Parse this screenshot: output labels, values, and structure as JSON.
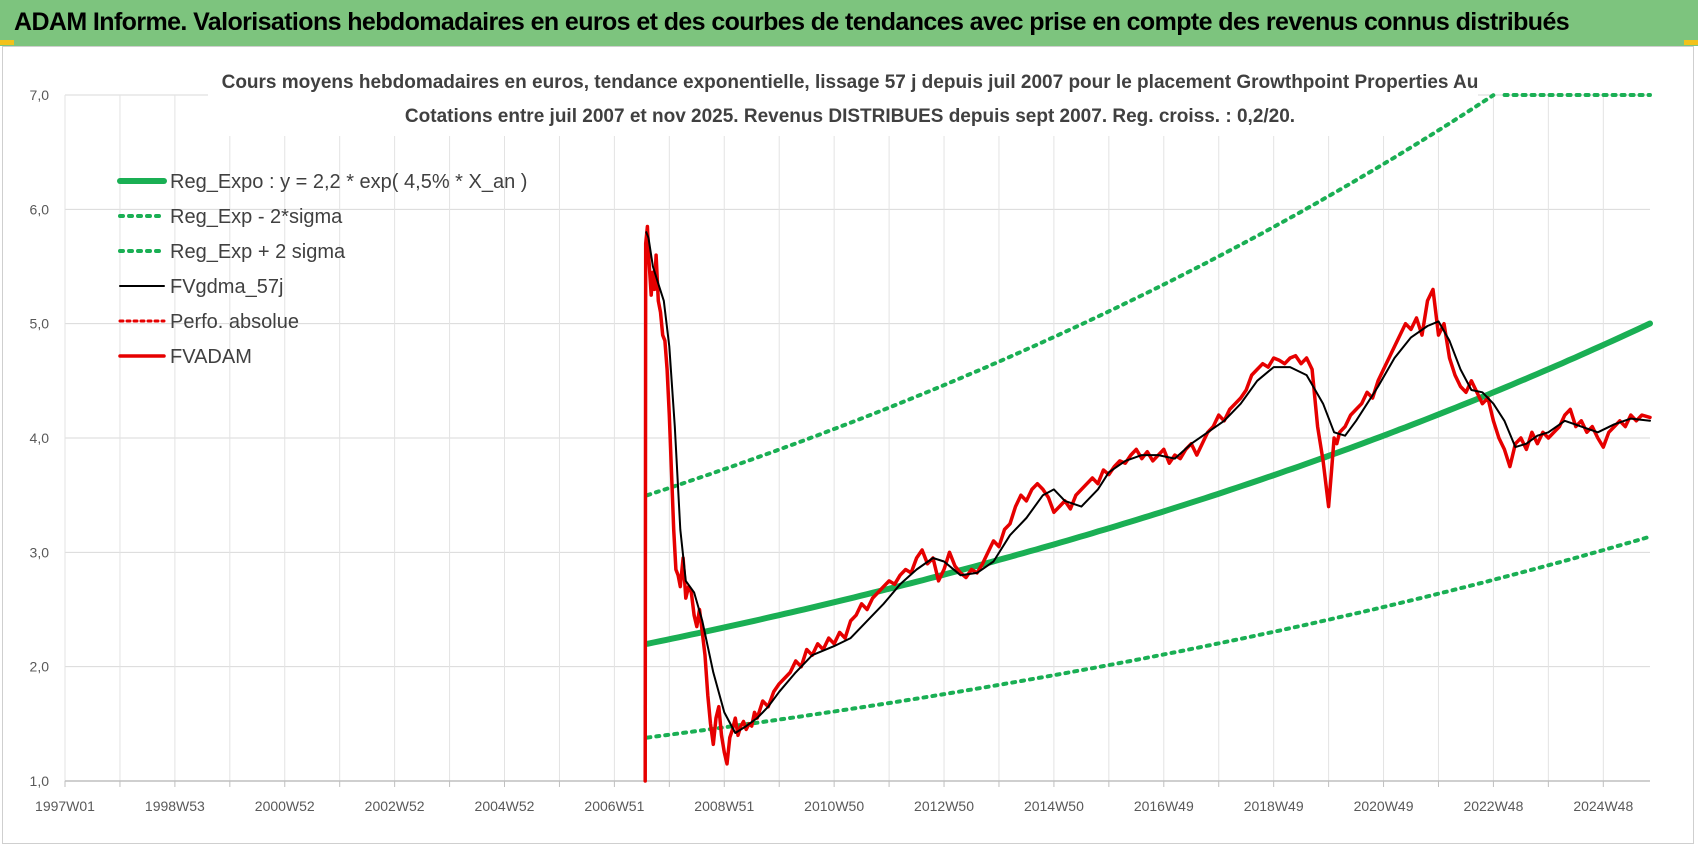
{
  "header": {
    "title": "ADAM Informe. Valorisations hebdomadaires en euros et des courbes de tendances avec prise en compte des revenus connus distribués",
    "background": "#7dc47e"
  },
  "chart_data": {
    "type": "line",
    "title": "Cours moyens hebdomadaires en euros, tendance exponentielle, lissage 57 j depuis juil 2007 pour le placement Growthpoint Properties Au",
    "subtitle": "Cotations entre juil 2007 et nov 2025. Revenus DISTRIBUES depuis sept 2007. Reg. croiss. : 0,2/20.",
    "xlabel": "",
    "ylabel": "",
    "ylim": [
      1.0,
      7.0
    ],
    "xlim": [
      1997.0,
      2025.85
    ],
    "grid": true,
    "legend_position": "top-left",
    "y_ticks": [
      "1,0",
      "2,0",
      "3,0",
      "4,0",
      "5,0",
      "6,0",
      "7,0"
    ],
    "x_ticks": [
      {
        "label": "1997W01",
        "x": 1997.0
      },
      {
        "label": "1998W53",
        "x": 1999.0
      },
      {
        "label": "2000W52",
        "x": 2001.0
      },
      {
        "label": "2002W52",
        "x": 2003.0
      },
      {
        "label": "2004W52",
        "x": 2005.0
      },
      {
        "label": "2006W51",
        "x": 2007.0
      },
      {
        "label": "2008W51",
        "x": 2009.0
      },
      {
        "label": "2010W50",
        "x": 2011.0
      },
      {
        "label": "2012W50",
        "x": 2013.0
      },
      {
        "label": "2014W50",
        "x": 2015.0
      },
      {
        "label": "2016W49",
        "x": 2017.0
      },
      {
        "label": "2018W49",
        "x": 2019.0
      },
      {
        "label": "2020W49",
        "x": 2021.0
      },
      {
        "label": "2022W48",
        "x": 2023.0
      },
      {
        "label": "2024W48",
        "x": 2025.0
      }
    ],
    "series": [
      {
        "name": "Reg_Expo : y = 2,2 * exp( 4,5% *  X_an )",
        "color": "#1aaf54",
        "style": "solid",
        "width": 6,
        "formula": {
          "a": 2.2,
          "rate": 0.045,
          "start": 2007.6,
          "end": 2025.85
        }
      },
      {
        "name": "Reg_Exp - 2*sigma",
        "color": "#1aaf54",
        "style": "dotted",
        "width": 4,
        "formula": {
          "a": 1.38,
          "rate": 0.045,
          "start": 2007.6,
          "end": 2025.85
        }
      },
      {
        "name": "Reg_Exp + 2 sigma",
        "color": "#1aaf54",
        "style": "dotted",
        "width": 4,
        "formula": {
          "a": 3.5,
          "rate": 0.045,
          "start": 2007.6,
          "end": 2025.85,
          "cap": 7.0
        }
      },
      {
        "name": "FVgdma_57j",
        "color": "#000000",
        "style": "solid",
        "width": 2,
        "x": [
          2007.58,
          2007.62,
          2007.7,
          2007.8,
          2007.9,
          2008.0,
          2008.1,
          2008.2,
          2008.3,
          2008.45,
          2008.6,
          2008.8,
          2009.0,
          2009.2,
          2009.4,
          2009.6,
          2009.8,
          2010.0,
          2010.3,
          2010.6,
          2011.0,
          2011.3,
          2011.6,
          2011.9,
          2012.2,
          2012.5,
          2012.8,
          2013.0,
          2013.3,
          2013.6,
          2013.9,
          2014.2,
          2014.5,
          2014.8,
          2015.0,
          2015.2,
          2015.5,
          2015.8,
          2016.0,
          2016.3,
          2016.6,
          2016.9,
          2017.2,
          2017.5,
          2017.8,
          2018.1,
          2018.4,
          2018.7,
          2019.0,
          2019.3,
          2019.6,
          2019.9,
          2020.1,
          2020.3,
          2020.5,
          2020.7,
          2020.9,
          2021.2,
          2021.5,
          2021.8,
          2022.0,
          2022.2,
          2022.4,
          2022.6,
          2022.8,
          2023.0,
          2023.2,
          2023.4,
          2023.6,
          2023.8,
          2024.0,
          2024.3,
          2024.6,
          2024.9,
          2025.2,
          2025.5,
          2025.85
        ],
        "y": [
          5.8,
          5.75,
          5.5,
          5.35,
          5.2,
          4.8,
          4.1,
          3.2,
          2.75,
          2.65,
          2.4,
          1.95,
          1.6,
          1.42,
          1.48,
          1.55,
          1.65,
          1.78,
          1.95,
          2.1,
          2.18,
          2.25,
          2.4,
          2.55,
          2.72,
          2.85,
          2.95,
          2.92,
          2.8,
          2.82,
          2.92,
          3.15,
          3.3,
          3.5,
          3.55,
          3.45,
          3.4,
          3.55,
          3.7,
          3.8,
          3.85,
          3.85,
          3.82,
          3.95,
          4.05,
          4.15,
          4.3,
          4.5,
          4.62,
          4.62,
          4.55,
          4.3,
          4.05,
          4.02,
          4.15,
          4.3,
          4.45,
          4.7,
          4.88,
          4.98,
          5.02,
          4.85,
          4.6,
          4.42,
          4.4,
          4.3,
          4.15,
          3.92,
          3.95,
          4.02,
          4.05,
          4.15,
          4.1,
          4.05,
          4.12,
          4.17,
          4.15
        ]
      },
      {
        "name": "Perfo. absolue",
        "color": "#e60000",
        "style": "dotted",
        "width": 3
      },
      {
        "name": "FVADAM",
        "color": "#e60000",
        "style": "solid",
        "width": 3.5,
        "x": [
          2007.56,
          2007.57,
          2007.6,
          2007.63,
          2007.67,
          2007.7,
          2007.73,
          2007.76,
          2007.8,
          2007.84,
          2007.88,
          2007.92,
          2007.96,
          2008.0,
          2008.04,
          2008.08,
          2008.12,
          2008.16,
          2008.2,
          2008.25,
          2008.3,
          2008.35,
          2008.4,
          2008.45,
          2008.5,
          2008.55,
          2008.6,
          2008.65,
          2008.7,
          2008.75,
          2008.8,
          2008.85,
          2008.9,
          2008.95,
          2009.0,
          2009.05,
          2009.1,
          2009.15,
          2009.2,
          2009.25,
          2009.3,
          2009.35,
          2009.4,
          2009.45,
          2009.5,
          2009.55,
          2009.6,
          2009.7,
          2009.8,
          2009.9,
          2010.0,
          2010.1,
          2010.2,
          2010.3,
          2010.4,
          2010.5,
          2010.6,
          2010.7,
          2010.8,
          2010.9,
          2011.0,
          2011.1,
          2011.2,
          2011.3,
          2011.4,
          2011.5,
          2011.6,
          2011.7,
          2011.8,
          2011.9,
          2012.0,
          2012.1,
          2012.2,
          2012.3,
          2012.4,
          2012.5,
          2012.6,
          2012.7,
          2012.8,
          2012.9,
          2013.0,
          2013.1,
          2013.2,
          2013.3,
          2013.4,
          2013.5,
          2013.6,
          2013.7,
          2013.8,
          2013.9,
          2014.0,
          2014.1,
          2014.2,
          2014.3,
          2014.4,
          2014.5,
          2014.6,
          2014.7,
          2014.8,
          2014.9,
          2015.0,
          2015.1,
          2015.2,
          2015.3,
          2015.4,
          2015.5,
          2015.6,
          2015.7,
          2015.8,
          2015.9,
          2016.0,
          2016.1,
          2016.2,
          2016.3,
          2016.4,
          2016.5,
          2016.6,
          2016.7,
          2016.8,
          2016.9,
          2017.0,
          2017.1,
          2017.2,
          2017.3,
          2017.4,
          2017.5,
          2017.6,
          2017.7,
          2017.8,
          2017.9,
          2018.0,
          2018.1,
          2018.2,
          2018.3,
          2018.4,
          2018.5,
          2018.6,
          2018.7,
          2018.8,
          2018.9,
          2019.0,
          2019.1,
          2019.2,
          2019.3,
          2019.4,
          2019.5,
          2019.6,
          2019.7,
          2019.8,
          2019.9,
          2020.0,
          2020.05,
          2020.1,
          2020.15,
          2020.2,
          2020.3,
          2020.4,
          2020.5,
          2020.6,
          2020.7,
          2020.8,
          2020.9,
          2021.0,
          2021.1,
          2021.2,
          2021.3,
          2021.4,
          2021.5,
          2021.6,
          2021.7,
          2021.8,
          2021.9,
          2022.0,
          2022.1,
          2022.2,
          2022.3,
          2022.4,
          2022.5,
          2022.6,
          2022.7,
          2022.8,
          2022.9,
          2023.0,
          2023.1,
          2023.2,
          2023.3,
          2023.4,
          2023.5,
          2023.6,
          2023.7,
          2023.8,
          2023.9,
          2024.0,
          2024.1,
          2024.2,
          2024.3,
          2024.4,
          2024.5,
          2024.6,
          2024.7,
          2024.8,
          2024.9,
          2025.0,
          2025.1,
          2025.2,
          2025.3,
          2025.4,
          2025.5,
          2025.6,
          2025.7,
          2025.85
        ],
        "y": [
          1.0,
          5.7,
          5.85,
          5.55,
          5.25,
          5.45,
          5.3,
          5.6,
          5.2,
          5.1,
          4.9,
          4.85,
          4.6,
          4.2,
          3.7,
          3.2,
          2.85,
          2.8,
          2.7,
          2.95,
          2.6,
          2.7,
          2.65,
          2.45,
          2.35,
          2.5,
          2.3,
          2.1,
          1.75,
          1.5,
          1.32,
          1.55,
          1.65,
          1.4,
          1.25,
          1.15,
          1.38,
          1.45,
          1.55,
          1.4,
          1.48,
          1.52,
          1.45,
          1.5,
          1.48,
          1.6,
          1.55,
          1.7,
          1.65,
          1.78,
          1.85,
          1.9,
          1.95,
          2.05,
          2.0,
          2.15,
          2.1,
          2.2,
          2.15,
          2.25,
          2.2,
          2.3,
          2.25,
          2.4,
          2.45,
          2.55,
          2.5,
          2.6,
          2.65,
          2.7,
          2.75,
          2.72,
          2.8,
          2.85,
          2.82,
          2.95,
          3.02,
          2.9,
          2.95,
          2.75,
          2.85,
          3.0,
          2.88,
          2.82,
          2.78,
          2.85,
          2.82,
          2.9,
          3.0,
          3.1,
          3.05,
          3.2,
          3.25,
          3.4,
          3.5,
          3.45,
          3.55,
          3.6,
          3.55,
          3.48,
          3.35,
          3.4,
          3.45,
          3.38,
          3.5,
          3.55,
          3.6,
          3.65,
          3.6,
          3.72,
          3.68,
          3.75,
          3.8,
          3.78,
          3.85,
          3.9,
          3.82,
          3.88,
          3.8,
          3.85,
          3.9,
          3.78,
          3.85,
          3.82,
          3.9,
          3.95,
          3.85,
          3.95,
          4.05,
          4.1,
          4.2,
          4.15,
          4.25,
          4.3,
          4.35,
          4.42,
          4.55,
          4.6,
          4.65,
          4.62,
          4.7,
          4.68,
          4.65,
          4.7,
          4.72,
          4.65,
          4.7,
          4.6,
          4.1,
          3.8,
          3.4,
          3.7,
          4.0,
          3.95,
          4.05,
          4.1,
          4.2,
          4.25,
          4.3,
          4.4,
          4.35,
          4.5,
          4.6,
          4.7,
          4.8,
          4.9,
          5.0,
          4.95,
          5.05,
          4.9,
          5.2,
          5.3,
          4.9,
          5.0,
          4.7,
          4.55,
          4.45,
          4.4,
          4.5,
          4.4,
          4.3,
          4.35,
          4.15,
          4.0,
          3.9,
          3.75,
          3.95,
          4.0,
          3.9,
          4.05,
          3.95,
          4.05,
          4.0,
          4.05,
          4.1,
          4.2,
          4.25,
          4.1,
          4.15,
          4.05,
          4.1,
          4.0,
          3.92,
          4.05,
          4.1,
          4.15,
          4.1,
          4.2,
          4.15,
          4.2,
          4.18
        ]
      }
    ]
  }
}
